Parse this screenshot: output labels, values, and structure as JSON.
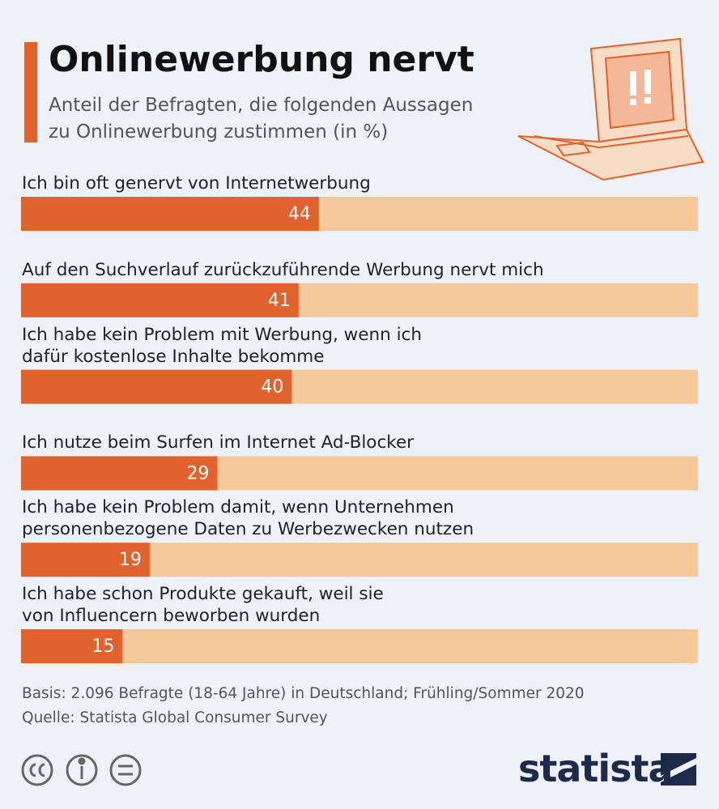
{
  "chart_data": {
    "type": "bar",
    "orientation": "horizontal",
    "title": "Onlinewerbung nervt",
    "subtitle": "Anteil der Befragten, die folgenden Aussagen\nzu Onlinewerbung zustimmen (in %)",
    "categories": [
      "Ich bin oft genervt von Internetwerbung",
      "Auf den Suchverlauf zurückzuführende Werbung nervt mich",
      "Ich habe kein Problem mit Werbung, wenn ich\ndafür kostenlose Inhalte bekomme",
      "Ich nutze beim Surfen im Internet Ad-Blocker",
      "Ich habe kein Problem damit, wenn Unternehmen\npersonenbezogene Daten zu Werbezwecken nutzen",
      "Ich habe schon Produkte gekauft, weil sie\nvon Influencern beworben wurden"
    ],
    "values": [
      44,
      41,
      40,
      29,
      19,
      15
    ],
    "color": "#e2622d",
    "track_color": "#f6c99c",
    "xlim": [
      0,
      100
    ],
    "notes": [
      "Basis: 2.096 Befragte (18-64 Jahre) in Deutschland; Frühling/Sommer 2020",
      "Quelle: Statista Global Consumer Survey"
    ],
    "logo": "statista"
  }
}
